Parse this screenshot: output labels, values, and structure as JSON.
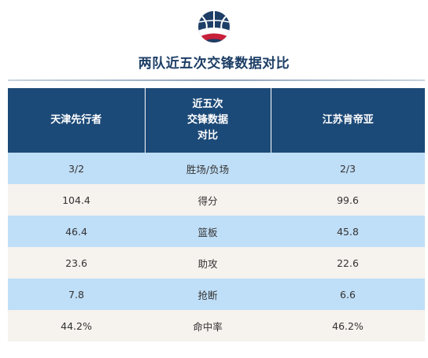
{
  "title": "两队近五次交锋数据对比",
  "logo_icon": "basketball-logo-icon",
  "colors": {
    "header_bg": "#1c4a78",
    "row_blue": "#bfdef7",
    "row_cream": "#f6f2ee",
    "title": "#1d3e66"
  },
  "table": {
    "headers": {
      "team_a": "天津先行者",
      "middle_lines": [
        "近五次",
        "交锋数据",
        "对比"
      ],
      "team_b": "江苏肯帝亚"
    },
    "rows": [
      {
        "a": "3/2",
        "stat": "胜场/负场",
        "b": "2/3"
      },
      {
        "a": "104.4",
        "stat": "得分",
        "b": "99.6"
      },
      {
        "a": "46.4",
        "stat": "篮板",
        "b": "45.8"
      },
      {
        "a": "23.6",
        "stat": "助攻",
        "b": "22.6"
      },
      {
        "a": "7.8",
        "stat": "抢断",
        "b": "6.6"
      },
      {
        "a": "44.2%",
        "stat": "命中率",
        "b": "46.2%"
      }
    ]
  }
}
